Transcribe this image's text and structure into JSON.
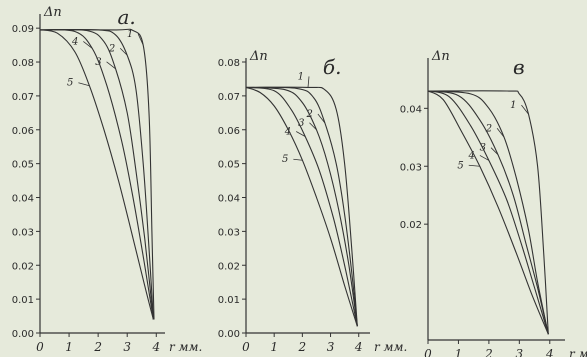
{
  "chart_data": [
    {
      "type": "line",
      "panel_letter": "а.",
      "ylabel": "Δn",
      "xlabel": "r мм.",
      "x_ticks": [
        "0",
        "1",
        "2",
        "3",
        "4"
      ],
      "y_ticks": [
        "0.00",
        "0.01",
        "0.02",
        "0.03",
        "0.04",
        "0.05",
        "0.06",
        "0.07",
        "0.08",
        "0.09"
      ],
      "xlim": [
        0,
        4.3
      ],
      "ylim": [
        0,
        0.093
      ],
      "series": [
        {
          "name": "1",
          "x": [
            0,
            2.6,
            3.2,
            3.55,
            3.75,
            3.85,
            3.92
          ],
          "y": [
            0.0895,
            0.0895,
            0.0893,
            0.085,
            0.065,
            0.03,
            0.004
          ]
        },
        {
          "name": "2",
          "x": [
            0,
            2.0,
            2.6,
            3.0,
            3.3,
            3.55,
            3.75,
            3.9
          ],
          "y": [
            0.0895,
            0.0895,
            0.088,
            0.082,
            0.072,
            0.05,
            0.025,
            0.004
          ]
        },
        {
          "name": "3",
          "x": [
            0,
            1.6,
            2.2,
            2.6,
            3.0,
            3.3,
            3.6,
            3.9
          ],
          "y": [
            0.0895,
            0.0893,
            0.086,
            0.078,
            0.065,
            0.048,
            0.028,
            0.004
          ]
        },
        {
          "name": "4",
          "x": [
            0,
            1.2,
            1.8,
            2.3,
            2.8,
            3.2,
            3.6,
            3.9
          ],
          "y": [
            0.0895,
            0.089,
            0.084,
            0.073,
            0.057,
            0.04,
            0.02,
            0.004
          ]
        },
        {
          "name": "5",
          "x": [
            0,
            0.6,
            1.2,
            1.7,
            2.2,
            2.7,
            3.2,
            3.6,
            3.9
          ],
          "y": [
            0.0895,
            0.0885,
            0.083,
            0.073,
            0.06,
            0.045,
            0.028,
            0.014,
            0.004
          ]
        }
      ]
    },
    {
      "type": "line",
      "panel_letter": "б.",
      "ylabel": "Δn",
      "xlabel": "r мм.",
      "x_ticks": [
        "0",
        "1",
        "2",
        "3",
        "4"
      ],
      "y_ticks": [
        "0.00",
        "0.01",
        "0.02",
        "0.03",
        "0.04",
        "0.05",
        "0.06",
        "0.07",
        "0.08"
      ],
      "xlim": [
        0,
        4.4
      ],
      "ylim": [
        0,
        0.08
      ],
      "series": [
        {
          "name": "1",
          "x": [
            0,
            2.2,
            2.8,
            3.2,
            3.5,
            3.75,
            3.95
          ],
          "y": [
            0.0725,
            0.0725,
            0.0718,
            0.066,
            0.05,
            0.025,
            0.002
          ]
        },
        {
          "name": "2",
          "x": [
            0,
            1.8,
            2.4,
            2.8,
            3.2,
            3.5,
            3.75,
            3.95
          ],
          "y": [
            0.0725,
            0.0722,
            0.0695,
            0.062,
            0.05,
            0.035,
            0.018,
            0.002
          ]
        },
        {
          "name": "3",
          "x": [
            0,
            1.4,
            2.0,
            2.5,
            2.9,
            3.3,
            3.65,
            3.95
          ],
          "y": [
            0.0725,
            0.0718,
            0.068,
            0.06,
            0.05,
            0.036,
            0.02,
            0.002
          ]
        },
        {
          "name": "4",
          "x": [
            0,
            1.0,
            1.6,
            2.1,
            2.6,
            3.1,
            3.5,
            3.95
          ],
          "y": [
            0.0725,
            0.0715,
            0.066,
            0.058,
            0.048,
            0.034,
            0.02,
            0.002
          ]
        },
        {
          "name": "5",
          "x": [
            0,
            0.5,
            1.0,
            1.5,
            2.0,
            2.5,
            3.0,
            3.5,
            3.95
          ],
          "y": [
            0.0725,
            0.071,
            0.067,
            0.06,
            0.051,
            0.04,
            0.028,
            0.014,
            0.002
          ]
        }
      ]
    },
    {
      "type": "line",
      "panel_letter": "в",
      "ylabel": "Δn",
      "xlabel": "r мм.",
      "x_ticks": [
        "0",
        "1",
        "2",
        "3",
        "4"
      ],
      "y_ticks": [
        "0.02",
        "0.03",
        "0.04"
      ],
      "xlim": [
        0,
        4.5
      ],
      "ylim": [
        0,
        0.048
      ],
      "series": [
        {
          "name": "1",
          "x": [
            0,
            2.6,
            3.0,
            3.3,
            3.6,
            3.8,
            3.95
          ],
          "y": [
            0.043,
            0.043,
            0.0425,
            0.039,
            0.03,
            0.015,
            0.001
          ]
        },
        {
          "name": "2",
          "x": [
            0,
            1.4,
            2.0,
            2.5,
            2.9,
            3.3,
            3.6,
            3.95
          ],
          "y": [
            0.043,
            0.0425,
            0.04,
            0.035,
            0.028,
            0.019,
            0.01,
            0.001
          ]
        },
        {
          "name": "3",
          "x": [
            0,
            1.0,
            1.7,
            2.3,
            2.8,
            3.2,
            3.6,
            3.95
          ],
          "y": [
            0.043,
            0.0422,
            0.038,
            0.032,
            0.025,
            0.017,
            0.009,
            0.001
          ]
        },
        {
          "name": "4",
          "x": [
            0,
            0.7,
            1.4,
            2.0,
            2.6,
            3.1,
            3.5,
            3.95
          ],
          "y": [
            0.043,
            0.042,
            0.037,
            0.031,
            0.024,
            0.016,
            0.009,
            0.001
          ]
        },
        {
          "name": "5",
          "x": [
            0,
            0.5,
            1.1,
            1.7,
            2.3,
            2.9,
            3.4,
            3.95
          ],
          "y": [
            0.043,
            0.0415,
            0.036,
            0.03,
            0.023,
            0.015,
            0.008,
            0.001
          ]
        }
      ]
    }
  ]
}
